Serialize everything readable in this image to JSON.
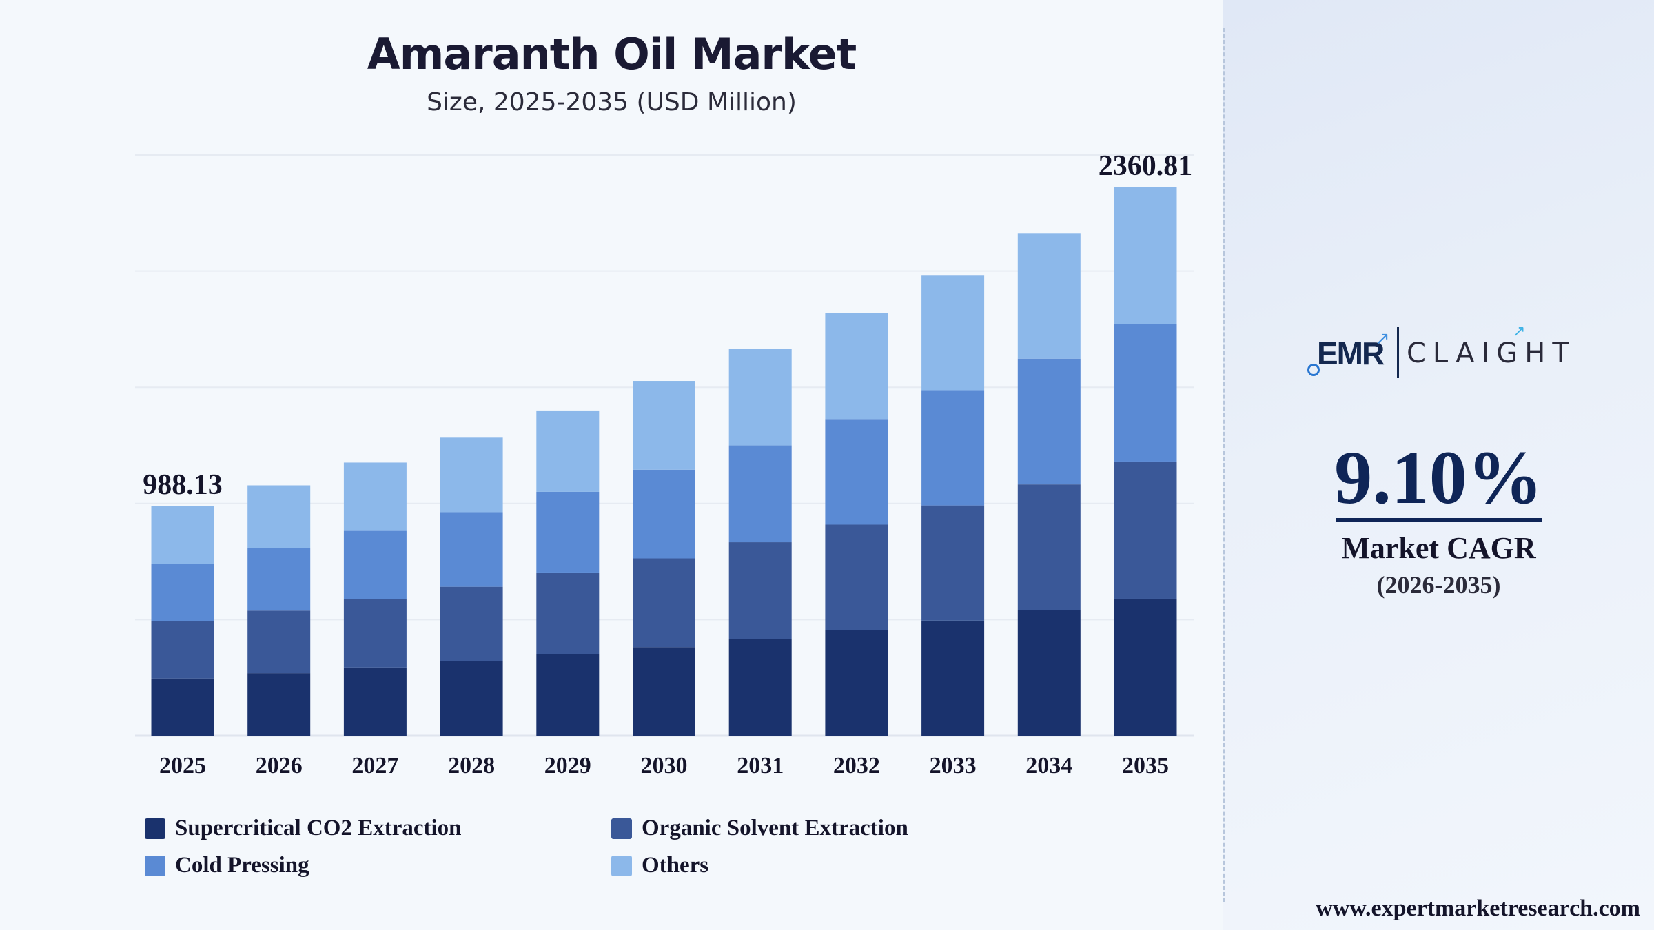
{
  "chart_data": {
    "type": "bar",
    "stacked": true,
    "title": "Amaranth Oil Market",
    "subtitle": "Size, 2025-2035 (USD Million)",
    "categories": [
      "2025",
      "2026",
      "2027",
      "2028",
      "2029",
      "2030",
      "2031",
      "2032",
      "2033",
      "2034",
      "2035"
    ],
    "series": [
      {
        "name": "Supercritical CO2 Extraction",
        "color": "#1a326d",
        "values": [
          247.0,
          269.5,
          294.0,
          320.8,
          350.0,
          381.8,
          416.6,
          454.5,
          495.8,
          541.0,
          590.2
        ]
      },
      {
        "name": "Organic Solvent Extraction",
        "color": "#3a5898",
        "values": [
          247.0,
          269.5,
          294.0,
          320.8,
          350.0,
          381.8,
          416.6,
          454.5,
          495.8,
          541.0,
          590.2
        ]
      },
      {
        "name": "Cold Pressing",
        "color": "#5a8ad4",
        "values": [
          247.0,
          269.5,
          294.0,
          320.8,
          350.0,
          381.8,
          416.6,
          454.5,
          495.8,
          541.0,
          590.2
        ]
      },
      {
        "name": "Others",
        "color": "#8cb8ea",
        "values": [
          247.13,
          269.5,
          294.0,
          320.8,
          350.0,
          381.8,
          416.6,
          454.5,
          495.8,
          541.0,
          590.21
        ]
      }
    ],
    "data_labels": [
      {
        "category": "2025",
        "text": "988.13"
      },
      {
        "category": "2035",
        "text": "2360.81"
      }
    ],
    "ylim": [
      0,
      2500
    ],
    "grid": true,
    "legend_position": "bottom"
  },
  "side_panel": {
    "logo_left": "EMR",
    "logo_right": "CLAIGHT",
    "cagr_value": "9.10%",
    "cagr_label": "Market CAGR",
    "cagr_period": "(2026-2035)",
    "website": "www.expertmarketresearch.com"
  }
}
